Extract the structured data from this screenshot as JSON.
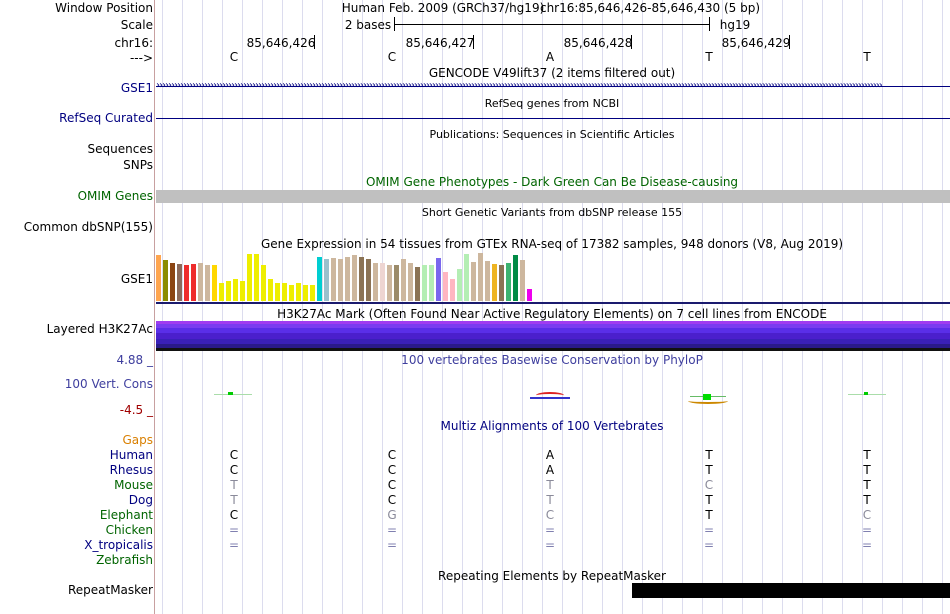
{
  "labels": {
    "window_position": "Window Position",
    "scale": "Scale",
    "chr": "chr16:",
    "arrow": "--->",
    "gse1_gencode": "GSE1",
    "refseq": "RefSeq Curated",
    "sequences": "Sequences",
    "snps": "SNPs",
    "omim": "OMIM Genes",
    "common_dbsnp": "Common dbSNP(155)",
    "gse1_gtex": "GSE1",
    "layered": "Layered H3K27Ac",
    "cons_max": "4.88 _",
    "cons_name": "100 Vert. Cons",
    "cons_min": "-4.5 _",
    "repeatmasker": "RepeatMasker"
  },
  "header": {
    "assembly": "Human Feb. 2009 (GRCh37/hg19)",
    "position": "chr16:85,646,426-85,646,430 (5 bp)",
    "scale_text": "2 bases",
    "db": "hg19",
    "coords": [
      "85,646,426",
      "85,646,427",
      "85,646,428",
      "85,646,429"
    ],
    "sequence": [
      "C",
      "C",
      "A",
      "T",
      "T"
    ]
  },
  "tracks": {
    "gencode_title": "GENCODE V49lift37 (2 items filtered out)",
    "refseq_title": "RefSeq genes from NCBI",
    "publications_title": "Publications: Sequences in Scientific Articles",
    "omim_title": "OMIM Gene Phenotypes - Dark Green Can Be Disease-causing",
    "dbsnp_title": "Short Genetic Variants from dbSNP release 155",
    "gtex_title": "Gene Expression in 54 tissues from GTEx RNA-seq of 17382 samples, 948 donors (V8, Aug 2019)",
    "h3k27ac_title": "H3K27Ac Mark (Often Found Near Active Regulatory Elements) on 7 cell lines from ENCODE",
    "phylop_title": "100 vertebrates Basewise Conservation by PhyloP",
    "multiz_title": "Multiz Alignments of 100 Vertebrates",
    "repeat_title": "Repeating Elements by RepeatMasker"
  },
  "gtex": {
    "levels": [
      0.95,
      0.85,
      0.8,
      0.78,
      0.76,
      0.78,
      0.8,
      0.74,
      0.74,
      0.38,
      0.42,
      0.45,
      0.42,
      0.98,
      0.98,
      0.74,
      0.45,
      0.38,
      0.38,
      0.34,
      0.38,
      0.34,
      0.34,
      0.92,
      0.88,
      0.9,
      0.88,
      0.92,
      0.95,
      0.92,
      0.88,
      0.8,
      0.8,
      0.76,
      0.76,
      0.88,
      0.8,
      0.7,
      0.76,
      0.76,
      0.9,
      0.6,
      0.46,
      0.66,
      0.98,
      0.82,
      1.0,
      0.84,
      0.78,
      0.76,
      0.8,
      0.96,
      0.86,
      0.26
    ],
    "colors": [
      "#ffa54f",
      "#8b8b00",
      "#8b4513",
      "#8b6a5b",
      "#ee2c2c",
      "#ee2c2c",
      "#cdb79e",
      "#cdb79e",
      "#ffd700",
      "#eeee00",
      "#eeee00",
      "#eeee00",
      "#eeee00",
      "#eeee00",
      "#eeee00",
      "#eeee00",
      "#eeee00",
      "#eeee00",
      "#eeee00",
      "#eeee00",
      "#eeee00",
      "#eeee00",
      "#eeee00",
      "#00ced1",
      "#9ac0cd",
      "#cdb79e",
      "#cdb79e",
      "#cdb79e",
      "#cdb79e",
      "#8b7355",
      "#8b7355",
      "#cdb79e",
      "#eed5d2",
      "#cdb79e",
      "#9b8b6a",
      "#cdb79e",
      "#cdb79e",
      "#8b7355",
      "#b4eeb4",
      "#b4eeb4",
      "#7a67ee",
      "#ffb6c1",
      "#ffb6c1",
      "#b4eeb4",
      "#b4eeb4",
      "#cdb79e",
      "#cdb79e",
      "#cdb79e",
      "#eeb422",
      "#8b7355",
      "#3cb371",
      "#008b45",
      "#cdb79e",
      "#ee00ee"
    ]
  },
  "multiz": {
    "gaps_label": "Gaps",
    "species": [
      {
        "name": "Human",
        "bases": [
          "C",
          "C",
          "A",
          "T",
          "T"
        ],
        "color": "#000080"
      },
      {
        "name": "Rhesus",
        "bases": [
          "C",
          "C",
          "A",
          "T",
          "T"
        ],
        "color": "#000080"
      },
      {
        "name": "Mouse",
        "bases": [
          "T",
          "C",
          "T",
          "C",
          "T"
        ],
        "color": "#006400"
      },
      {
        "name": "Dog",
        "bases": [
          "T",
          "C",
          "T",
          "T",
          "T"
        ],
        "color": "#000080"
      },
      {
        "name": "Elephant",
        "bases": [
          "C",
          "G",
          "C",
          "T",
          "C"
        ],
        "color": "#006400"
      },
      {
        "name": "Chicken",
        "bases": [
          "=",
          "=",
          "=",
          "=",
          "="
        ],
        "color": "#006400"
      },
      {
        "name": "X_tropicalis",
        "bases": [
          "=",
          "=",
          "=",
          "=",
          "="
        ],
        "color": "#000080"
      },
      {
        "name": "Zebrafish",
        "bases": [
          "",
          "",
          "",
          "",
          ""
        ],
        "color": "#006400"
      }
    ]
  },
  "colors": {
    "track_label_blue": "#000080",
    "omim_green": "#006400",
    "gaps_orange": "#d97f00",
    "phylop_blue": "#3e3e9e",
    "min_red": "#a00000",
    "h3k27ac_purple": "#4b1fcc"
  }
}
